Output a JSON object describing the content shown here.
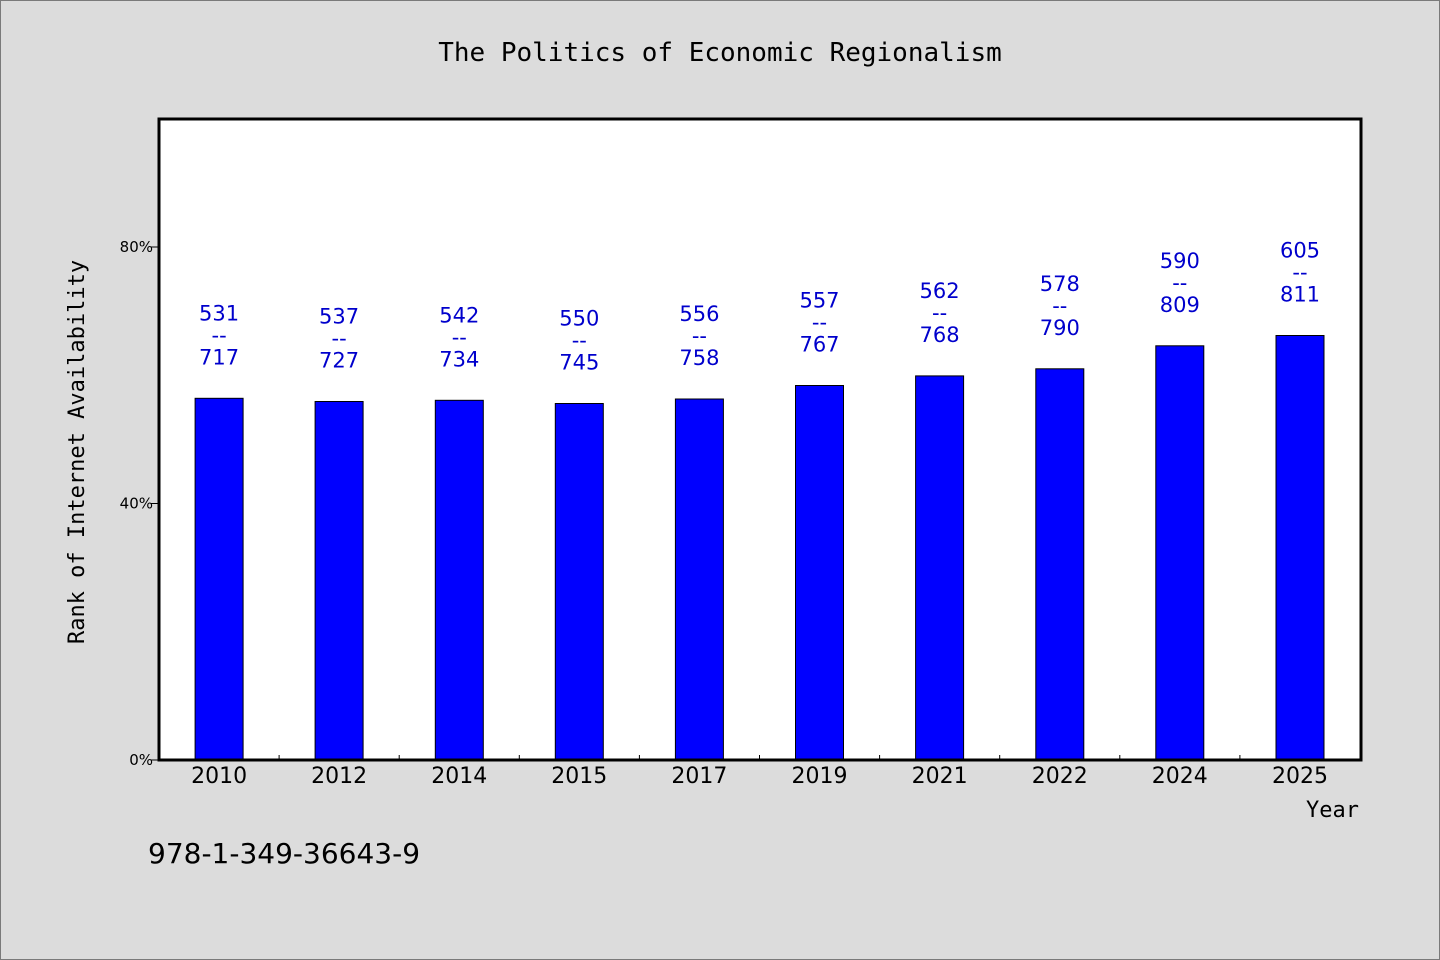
{
  "chart_data": {
    "type": "bar",
    "title": "The Politics of Economic Regionalism",
    "xlabel": "Year",
    "ylabel": "Rank of Internet Availability",
    "categories": [
      "2010",
      "2012",
      "2014",
      "2015",
      "2017",
      "2019",
      "2021",
      "2022",
      "2024",
      "2025"
    ],
    "values": [
      56.4,
      55.9,
      56.1,
      55.6,
      56.3,
      58.4,
      59.9,
      61.0,
      64.6,
      66.2
    ],
    "data_labels": [
      {
        "top": "531",
        "sep": "--",
        "bottom": "717"
      },
      {
        "top": "537",
        "sep": "--",
        "bottom": "727"
      },
      {
        "top": "542",
        "sep": "--",
        "bottom": "734"
      },
      {
        "top": "550",
        "sep": "--",
        "bottom": "745"
      },
      {
        "top": "556",
        "sep": "--",
        "bottom": "758"
      },
      {
        "top": "557",
        "sep": "--",
        "bottom": "767"
      },
      {
        "top": "562",
        "sep": "--",
        "bottom": "768"
      },
      {
        "top": "578",
        "sep": "--",
        "bottom": "790"
      },
      {
        "top": "590",
        "sep": "--",
        "bottom": "809"
      },
      {
        "top": "605",
        "sep": "--",
        "bottom": "811"
      }
    ],
    "ylim": [
      0,
      100
    ],
    "yticks": [
      0,
      40,
      80
    ],
    "ytick_labels": [
      "0%",
      "40%",
      "80%"
    ],
    "grid": false,
    "legend": "none",
    "colors": {
      "bar": "#0000ff",
      "data_label": "#0000cc",
      "plot_background": "#ffffff",
      "page_background": "#dcdcdc"
    }
  },
  "footer": {
    "isbn": "978-1-349-36643-9"
  }
}
